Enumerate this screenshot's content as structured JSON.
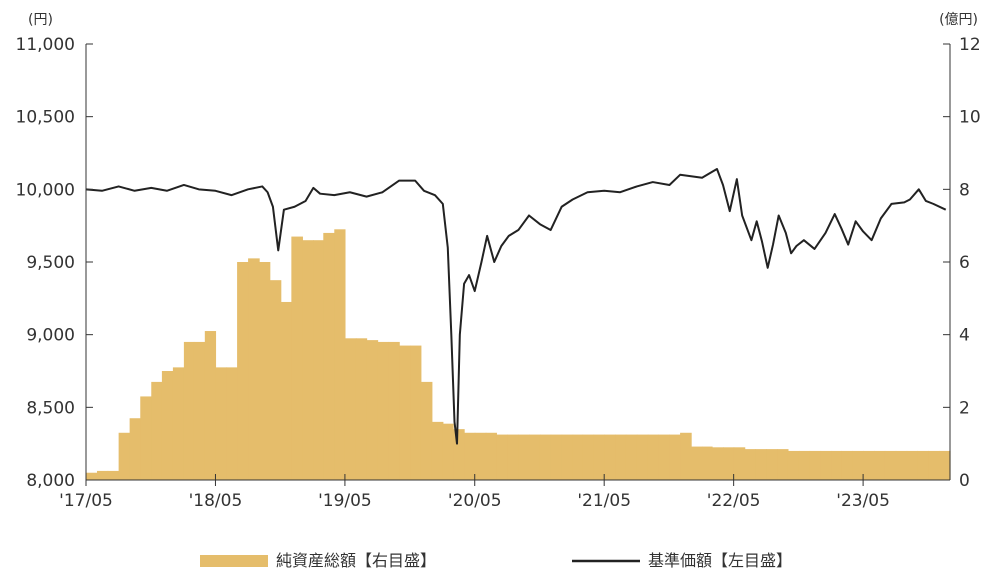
{
  "chart_data": {
    "type": "bar+line",
    "x_ticks": [
      "'17/05",
      "'18/05",
      "'19/05",
      "'20/05",
      "'21/05",
      "'22/05",
      "'23/05"
    ],
    "x_range": [
      "2017-05",
      "2024-01"
    ],
    "left_axis": {
      "unit": "(円)",
      "range": [
        8000,
        11000
      ],
      "ticks": [
        "8,000",
        "8,500",
        "9,000",
        "9,500",
        "10,000",
        "10,500",
        "11,000"
      ]
    },
    "right_axis": {
      "unit": "(億円)",
      "range": [
        0,
        12
      ],
      "ticks": [
        "0",
        "2",
        "4",
        "6",
        "8",
        "10",
        "12"
      ]
    },
    "legend_position": "bottom",
    "series": [
      {
        "name": "純資産総額【右目盛】",
        "type": "bar",
        "axis": "right",
        "color": "#E5BD6B",
        "data": [
          [
            "2017-05",
            0.2
          ],
          [
            "2017-06",
            0.25
          ],
          [
            "2017-07",
            0.25
          ],
          [
            "2017-08",
            1.3
          ],
          [
            "2017-09",
            1.7
          ],
          [
            "2017-10",
            2.3
          ],
          [
            "2017-11",
            2.7
          ],
          [
            "2017-12",
            3.0
          ],
          [
            "2018-01",
            3.1
          ],
          [
            "2018-02",
            3.8
          ],
          [
            "2018-03",
            3.8
          ],
          [
            "2018-04",
            4.1
          ],
          [
            "2018-05",
            3.1
          ],
          [
            "2018-06",
            3.1
          ],
          [
            "2018-07",
            6.0
          ],
          [
            "2018-08",
            6.1
          ],
          [
            "2018-09",
            6.0
          ],
          [
            "2018-10",
            5.5
          ],
          [
            "2018-11",
            4.9
          ],
          [
            "2018-12",
            6.7
          ],
          [
            "2019-01",
            6.6
          ],
          [
            "2019-02",
            6.6
          ],
          [
            "2019-03",
            6.8
          ],
          [
            "2019-04",
            6.9
          ],
          [
            "2019-05",
            3.9
          ],
          [
            "2019-06",
            3.9
          ],
          [
            "2019-07",
            3.85
          ],
          [
            "2019-08",
            3.8
          ],
          [
            "2019-09",
            3.8
          ],
          [
            "2019-10",
            3.7
          ],
          [
            "2019-11",
            3.7
          ],
          [
            "2019-12",
            2.7
          ],
          [
            "2020-01",
            1.6
          ],
          [
            "2020-02",
            1.55
          ],
          [
            "2020-03",
            1.4
          ],
          [
            "2020-04",
            1.3
          ],
          [
            "2020-05",
            1.3
          ],
          [
            "2020-06",
            1.3
          ],
          [
            "2020-07",
            1.25
          ],
          [
            "2020-08",
            1.25
          ],
          [
            "2020-09",
            1.25
          ],
          [
            "2020-10",
            1.25
          ],
          [
            "2020-11",
            1.25
          ],
          [
            "2020-12",
            1.25
          ],
          [
            "2021-01",
            1.25
          ],
          [
            "2021-02",
            1.25
          ],
          [
            "2021-03",
            1.25
          ],
          [
            "2021-04",
            1.25
          ],
          [
            "2021-05",
            1.25
          ],
          [
            "2021-06",
            1.25
          ],
          [
            "2021-07",
            1.25
          ],
          [
            "2021-08",
            1.25
          ],
          [
            "2021-09",
            1.25
          ],
          [
            "2021-10",
            1.25
          ],
          [
            "2021-11",
            1.25
          ],
          [
            "2021-12",
            1.3
          ],
          [
            "2022-01",
            0.92
          ],
          [
            "2022-02",
            0.92
          ],
          [
            "2022-03",
            0.9
          ],
          [
            "2022-04",
            0.9
          ],
          [
            "2022-05",
            0.9
          ],
          [
            "2022-06",
            0.85
          ],
          [
            "2022-07",
            0.85
          ],
          [
            "2022-08",
            0.85
          ],
          [
            "2022-09",
            0.85
          ],
          [
            "2022-10",
            0.8
          ],
          [
            "2022-11",
            0.8
          ],
          [
            "2022-12",
            0.8
          ],
          [
            "2023-01",
            0.8
          ],
          [
            "2023-02",
            0.8
          ],
          [
            "2023-03",
            0.8
          ],
          [
            "2023-04",
            0.8
          ],
          [
            "2023-05",
            0.8
          ],
          [
            "2023-06",
            0.8
          ],
          [
            "2023-07",
            0.8
          ],
          [
            "2023-08",
            0.8
          ],
          [
            "2023-09",
            0.8
          ],
          [
            "2023-10",
            0.8
          ],
          [
            "2023-11",
            0.8
          ],
          [
            "2023-12",
            0.8
          ]
        ]
      },
      {
        "name": "基準価額【左目盛】",
        "type": "line",
        "axis": "left",
        "color": "#222222",
        "data": [
          [
            "2017-05-01",
            10000
          ],
          [
            "2017-06-15",
            9990
          ],
          [
            "2017-08-01",
            10020
          ],
          [
            "2017-09-15",
            9990
          ],
          [
            "2017-11-01",
            10010
          ],
          [
            "2017-12-15",
            9990
          ],
          [
            "2018-02-01",
            10030
          ],
          [
            "2018-03-15",
            10000
          ],
          [
            "2018-05-01",
            9990
          ],
          [
            "2018-06-15",
            9960
          ],
          [
            "2018-08-01",
            10000
          ],
          [
            "2018-09-10",
            10020
          ],
          [
            "2018-09-25",
            9980
          ],
          [
            "2018-10-10",
            9880
          ],
          [
            "2018-10-25",
            9580
          ],
          [
            "2018-11-10",
            9860
          ],
          [
            "2018-12-10",
            9880
          ],
          [
            "2019-01-10",
            9920
          ],
          [
            "2019-02-01",
            10010
          ],
          [
            "2019-02-20",
            9970
          ],
          [
            "2019-04-01",
            9960
          ],
          [
            "2019-05-15",
            9980
          ],
          [
            "2019-07-01",
            9950
          ],
          [
            "2019-08-15",
            9980
          ],
          [
            "2019-10-01",
            10060
          ],
          [
            "2019-11-15",
            10060
          ],
          [
            "2019-12-10",
            9990
          ],
          [
            "2020-01-10",
            9960
          ],
          [
            "2020-02-01",
            9900
          ],
          [
            "2020-02-15",
            9600
          ],
          [
            "2020-02-25",
            9000
          ],
          [
            "2020-03-05",
            8400
          ],
          [
            "2020-03-12",
            8250
          ],
          [
            "2020-03-20",
            9000
          ],
          [
            "2020-04-01",
            9350
          ],
          [
            "2020-04-15",
            9410
          ],
          [
            "2020-05-01",
            9300
          ],
          [
            "2020-05-20",
            9500
          ],
          [
            "2020-06-05",
            9680
          ],
          [
            "2020-06-25",
            9500
          ],
          [
            "2020-07-15",
            9610
          ],
          [
            "2020-08-05",
            9680
          ],
          [
            "2020-09-01",
            9720
          ],
          [
            "2020-10-01",
            9820
          ],
          [
            "2020-11-01",
            9760
          ],
          [
            "2020-12-01",
            9720
          ],
          [
            "2021-01-01",
            9880
          ],
          [
            "2021-02-01",
            9930
          ],
          [
            "2021-03-15",
            9980
          ],
          [
            "2021-05-01",
            9990
          ],
          [
            "2021-06-15",
            9980
          ],
          [
            "2021-08-01",
            10020
          ],
          [
            "2021-09-15",
            10050
          ],
          [
            "2021-11-01",
            10030
          ],
          [
            "2021-12-01",
            10100
          ],
          [
            "2022-01-01",
            10090
          ],
          [
            "2022-02-01",
            10080
          ],
          [
            "2022-03-01",
            10120
          ],
          [
            "2022-03-15",
            10140
          ],
          [
            "2022-04-01",
            10030
          ],
          [
            "2022-04-20",
            9850
          ],
          [
            "2022-05-10",
            10070
          ],
          [
            "2022-05-25",
            9820
          ],
          [
            "2022-06-20",
            9650
          ],
          [
            "2022-07-05",
            9780
          ],
          [
            "2022-07-20",
            9640
          ],
          [
            "2022-08-05",
            9460
          ],
          [
            "2022-08-20",
            9620
          ],
          [
            "2022-09-05",
            9820
          ],
          [
            "2022-09-25",
            9700
          ],
          [
            "2022-10-10",
            9560
          ],
          [
            "2022-10-25",
            9610
          ],
          [
            "2022-11-15",
            9650
          ],
          [
            "2022-12-15",
            9590
          ],
          [
            "2023-01-15",
            9700
          ],
          [
            "2023-02-10",
            9830
          ],
          [
            "2023-03-01",
            9730
          ],
          [
            "2023-03-20",
            9620
          ],
          [
            "2023-04-10",
            9780
          ],
          [
            "2023-05-01",
            9710
          ],
          [
            "2023-05-25",
            9650
          ],
          [
            "2023-06-20",
            9800
          ],
          [
            "2023-07-20",
            9900
          ],
          [
            "2023-08-25",
            9910
          ],
          [
            "2023-09-10",
            9930
          ],
          [
            "2023-10-05",
            10000
          ],
          [
            "2023-10-25",
            9920
          ],
          [
            "2023-11-15",
            9900
          ],
          [
            "2023-12-20",
            9860
          ]
        ]
      }
    ]
  }
}
